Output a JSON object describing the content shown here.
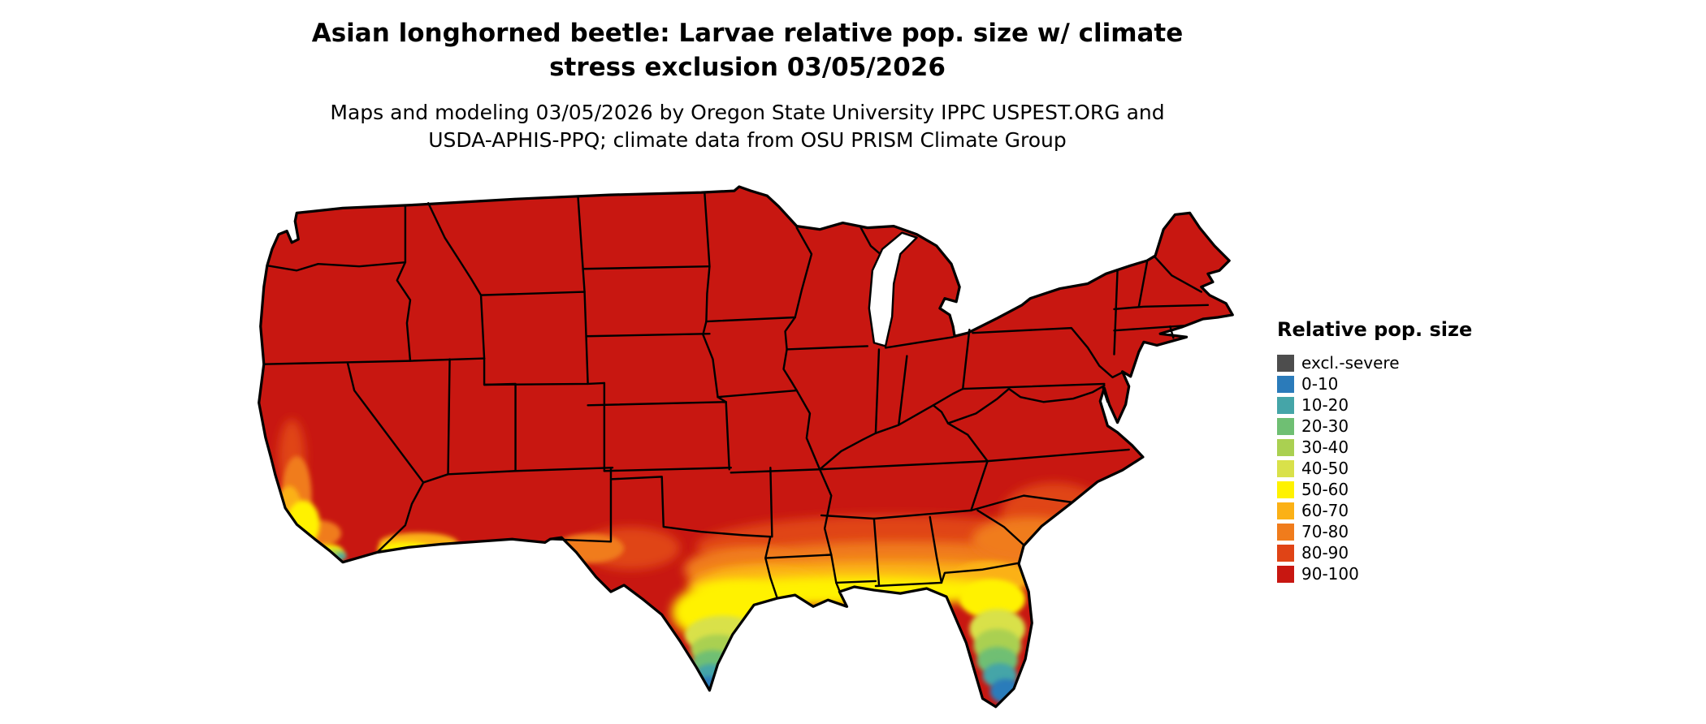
{
  "title": {
    "line1": "Asian longhorned beetle: Larvae relative pop. size w/ climate",
    "line2": "stress exclusion 03/05/2026"
  },
  "subtitle": {
    "line1": "Maps and modeling 03/05/2026 by Oregon State University IPPC USPEST.ORG and",
    "line2": "USDA-APHIS-PPQ; climate data from OSU PRISM Climate Group"
  },
  "legend": {
    "title": "Relative pop. size",
    "items": [
      {
        "label": "excl.-severe",
        "color": "#4D4D4D"
      },
      {
        "label": "0-10",
        "color": "#2B7BBA"
      },
      {
        "label": "10-20",
        "color": "#45A5A8"
      },
      {
        "label": "20-30",
        "color": "#6FBF73"
      },
      {
        "label": "30-40",
        "color": "#AAD051"
      },
      {
        "label": "40-50",
        "color": "#D9E14A"
      },
      {
        "label": "50-60",
        "color": "#FFF200"
      },
      {
        "label": "60-70",
        "color": "#FBB116"
      },
      {
        "label": "70-80",
        "color": "#F07C1C"
      },
      {
        "label": "80-90",
        "color": "#E04416"
      },
      {
        "label": "90-100",
        "color": "#C81711"
      }
    ]
  },
  "map": {
    "type": "choropleth-raster",
    "area": "Contiguous United States with state boundaries",
    "dominant_class": "90-100",
    "low_value_regions": [
      "southern Texas",
      "southern Florida",
      "Gulf Coast band",
      "coastal and central California",
      "southwestern Arizona",
      "southern New Mexico / Rio Grande valley",
      "Southeast coastal plain (orange band)"
    ],
    "outline_color": "#000000",
    "water_color": "#ffffff"
  }
}
